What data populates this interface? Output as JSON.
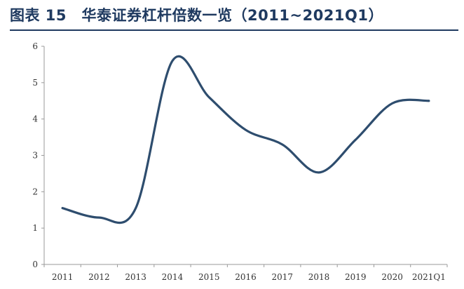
{
  "title": "图表 15　华泰证券杠杆倍数一览（2011~2021Q1）",
  "colors": {
    "title": "#1f3a60",
    "line": "#2e4d6e",
    "axis": "#9a9a9a"
  },
  "chart_data": {
    "type": "line",
    "title": "图表 15　华泰证券杠杆倍数一览（2011~2021Q1）",
    "xlabel": "",
    "ylabel": "",
    "categories": [
      "2011",
      "2012",
      "2013",
      "2014",
      "2015",
      "2016",
      "2017",
      "2018",
      "2019",
      "2020",
      "2021Q1"
    ],
    "yticks": [
      "0",
      "1",
      "2",
      "3",
      "4",
      "5",
      "6"
    ],
    "ylim": [
      0,
      6
    ],
    "grid": false,
    "legend": "none",
    "series": [
      {
        "name": "",
        "values": [
          1.55,
          1.29,
          1.55,
          5.6,
          4.6,
          3.7,
          3.3,
          2.53,
          3.43,
          4.43,
          4.5
        ]
      }
    ]
  }
}
